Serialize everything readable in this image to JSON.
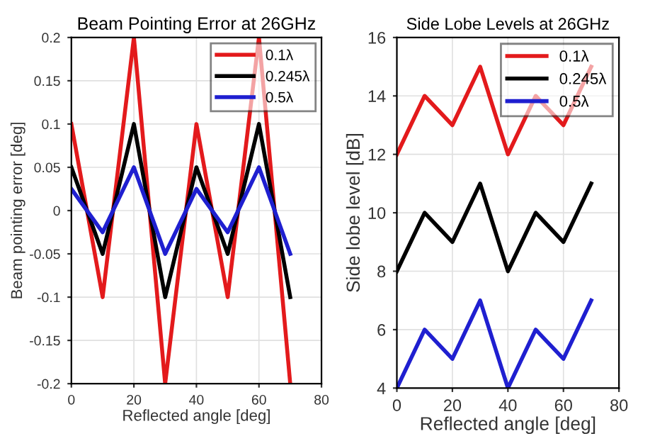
{
  "chart_data": [
    {
      "type": "line",
      "title": "Beam Pointing Error at 26GHz",
      "xlabel": "Reflected angle [deg]",
      "ylabel": "Beam pointing error [deg]",
      "x": [
        0,
        10,
        20,
        30,
        40,
        50,
        60,
        70
      ],
      "series": [
        {
          "name": "0.1λ",
          "color": "#e31a1c",
          "values": [
            0.1,
            -0.1,
            0.2,
            -0.2,
            0.1,
            -0.1,
            0.2,
            -0.2
          ]
        },
        {
          "name": "0.245λ",
          "color": "#000000",
          "values": [
            0.05,
            -0.05,
            0.1,
            -0.1,
            0.05,
            -0.05,
            0.1,
            -0.1
          ]
        },
        {
          "name": "0.5λ",
          "color": "#1f1fd0",
          "values": [
            0.025,
            -0.025,
            0.05,
            -0.05,
            0.025,
            -0.025,
            0.05,
            -0.05
          ]
        }
      ],
      "xlim": [
        0,
        80
      ],
      "xticks": [
        0,
        20,
        40,
        60,
        80
      ],
      "ylim": [
        -0.2,
        0.2
      ],
      "yticks": [
        -0.2,
        -0.15,
        -0.1,
        -0.05,
        0,
        0.05,
        0.1,
        0.15,
        0.2
      ],
      "grid": true,
      "legend": "top right"
    },
    {
      "type": "line",
      "title": "Side Lobe Levels at 26GHz",
      "xlabel": "Reflected angle [deg]",
      "ylabel": "Side lobe level [dB]",
      "x": [
        0,
        10,
        20,
        30,
        40,
        50,
        60,
        70
      ],
      "series": [
        {
          "name": "0.1λ",
          "color": "#e31a1c",
          "values": [
            12,
            14,
            13,
            15,
            12,
            14,
            13,
            15
          ]
        },
        {
          "name": "0.245λ",
          "color": "#000000",
          "values": [
            8,
            10,
            9,
            11,
            8,
            10,
            9,
            11
          ]
        },
        {
          "name": "0.5λ",
          "color": "#1f1fd0",
          "values": [
            4,
            6,
            5,
            7,
            4,
            6,
            5,
            7
          ]
        }
      ],
      "xlim": [
        0,
        80
      ],
      "xticks": [
        0,
        20,
        40,
        60,
        80
      ],
      "ylim": [
        4,
        16
      ],
      "yticks": [
        4,
        6,
        8,
        10,
        12,
        14,
        16
      ],
      "grid": true,
      "legend": "top right"
    }
  ]
}
